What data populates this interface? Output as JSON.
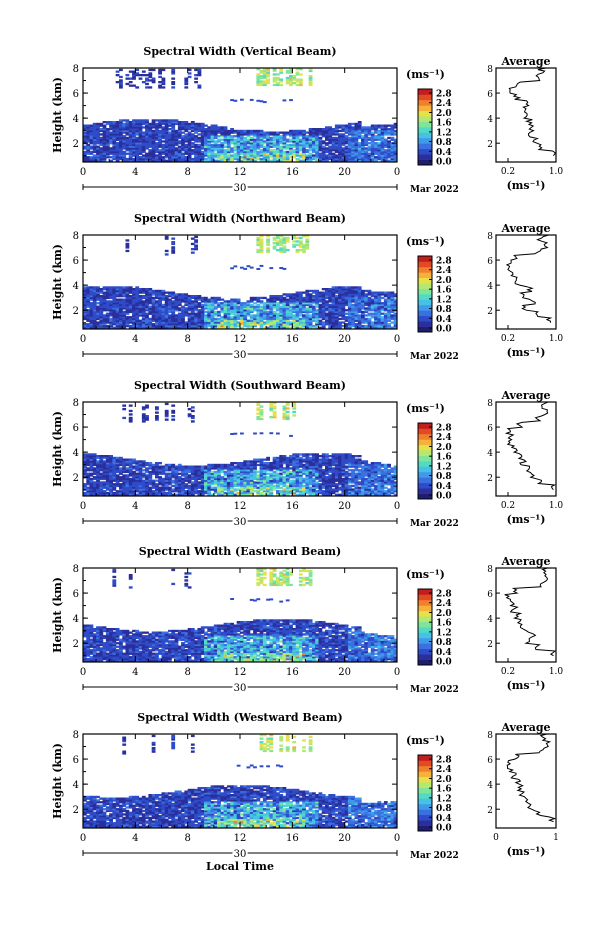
{
  "figure": {
    "xlabel": "Local Time",
    "ylabel": "Height (km)",
    "date_day": "30",
    "date_month": "Mar 2022",
    "avg_title": "Average",
    "unit": "(ms⁻¹)",
    "colorbar_ticks": [
      "0.0",
      "0.4",
      "0.8",
      "1.2",
      "1.6",
      "2.0",
      "2.4",
      "2.8"
    ],
    "x_ticks": [
      "0",
      "4",
      "8",
      "12",
      "16",
      "20",
      "0"
    ],
    "y_ticks": [
      "2",
      "4",
      "6",
      "8"
    ]
  },
  "chart_data": [
    {
      "type": "heatmap",
      "title": "Spectral Width (Vertical Beam)",
      "xlabel": "",
      "ylabel": "Height (km)",
      "xlim": [
        0,
        24
      ],
      "ylim": [
        0.5,
        8
      ],
      "colorbar": {
        "label": "(ms⁻¹)",
        "range": [
          0,
          3.0
        ]
      },
      "avg_profile": {
        "xlim": [
          0,
          1.0
        ],
        "x_ticks": [
          "0.2",
          "1.0"
        ],
        "ylim": [
          0.5,
          8
        ],
        "height": [
          1.0,
          1.5,
          2.0,
          2.5,
          3.0,
          3.5,
          4.0,
          4.5,
          5.0,
          5.5,
          6.0,
          6.5,
          7.0,
          7.5,
          8.0
        ],
        "width": [
          0.95,
          0.75,
          0.65,
          0.55,
          0.6,
          0.55,
          0.5,
          0.45,
          0.5,
          0.35,
          0.25,
          0.35,
          0.7,
          0.75,
          0.85
        ]
      }
    },
    {
      "type": "heatmap",
      "title": "Spectral Width (Northward Beam)",
      "xlabel": "",
      "ylabel": "Height (km)",
      "xlim": [
        0,
        24
      ],
      "ylim": [
        0.5,
        8
      ],
      "colorbar": {
        "label": "(ms⁻¹)",
        "range": [
          0,
          3.0
        ]
      },
      "avg_profile": {
        "xlim": [
          0,
          1.0
        ],
        "x_ticks": [
          "0.2",
          "1.0"
        ],
        "ylim": [
          0.5,
          8
        ],
        "height": [
          1.0,
          1.5,
          2.0,
          2.5,
          3.0,
          3.5,
          4.0,
          4.5,
          5.0,
          5.5,
          6.0,
          6.5,
          7.0,
          7.5,
          8.0
        ],
        "width": [
          0.9,
          0.65,
          0.5,
          0.6,
          0.45,
          0.55,
          0.35,
          0.3,
          0.25,
          0.2,
          0.3,
          0.7,
          0.8,
          0.75,
          0.9
        ]
      }
    },
    {
      "type": "heatmap",
      "title": "Spectral Width (Southward Beam)",
      "xlabel": "",
      "ylabel": "Height (km)",
      "xlim": [
        0,
        24
      ],
      "ylim": [
        0.5,
        8
      ],
      "colorbar": {
        "label": "(ms⁻¹)",
        "range": [
          0,
          3.0
        ]
      },
      "avg_profile": {
        "xlim": [
          0,
          1.0
        ],
        "x_ticks": [
          "0.2",
          "1.0"
        ],
        "ylim": [
          0.5,
          8
        ],
        "height": [
          1.0,
          1.5,
          2.0,
          2.5,
          3.0,
          3.5,
          4.0,
          4.5,
          5.0,
          5.5,
          6.0,
          6.5,
          7.0,
          7.5,
          8.0
        ],
        "width": [
          0.95,
          0.7,
          0.6,
          0.55,
          0.45,
          0.4,
          0.3,
          0.25,
          0.25,
          0.2,
          0.4,
          0.7,
          0.85,
          0.8,
          0.9
        ]
      }
    },
    {
      "type": "heatmap",
      "title": "Spectral Width (Eastward Beam)",
      "xlabel": "",
      "ylabel": "Height (km)",
      "xlim": [
        0,
        24
      ],
      "ylim": [
        0.5,
        8
      ],
      "colorbar": {
        "label": "(ms⁻¹)",
        "range": [
          0,
          3.0
        ]
      },
      "avg_profile": {
        "xlim": [
          0,
          1.0
        ],
        "x_ticks": [
          "0.2",
          "1.0"
        ],
        "ylim": [
          0.5,
          8
        ],
        "height": [
          1.0,
          1.5,
          2.0,
          2.5,
          3.0,
          3.5,
          4.0,
          4.5,
          5.0,
          5.5,
          6.0,
          6.5,
          7.0,
          7.5,
          8.0
        ],
        "width": [
          0.95,
          0.7,
          0.55,
          0.6,
          0.45,
          0.4,
          0.35,
          0.3,
          0.25,
          0.2,
          0.35,
          0.75,
          0.85,
          0.8,
          0.9
        ]
      }
    },
    {
      "type": "heatmap",
      "title": "Spectral Width (Westward Beam)",
      "xlabel": "Local Time",
      "ylabel": "Height (km)",
      "xlim": [
        0,
        24
      ],
      "ylim": [
        0.5,
        8
      ],
      "colorbar": {
        "label": "(ms⁻¹)",
        "range": [
          0,
          3.0
        ]
      },
      "avg_profile": {
        "xlim": [
          0,
          1.0
        ],
        "x_ticks": [
          "0",
          "1"
        ],
        "ylim": [
          0.5,
          8
        ],
        "height": [
          1.0,
          1.5,
          2.0,
          2.5,
          3.0,
          3.5,
          4.0,
          4.5,
          5.0,
          5.5,
          6.0,
          6.5,
          7.0,
          7.5,
          8.0
        ],
        "width": [
          0.95,
          0.7,
          0.55,
          0.5,
          0.45,
          0.4,
          0.35,
          0.3,
          0.25,
          0.2,
          0.35,
          0.75,
          0.85,
          0.8,
          0.9
        ]
      }
    }
  ]
}
